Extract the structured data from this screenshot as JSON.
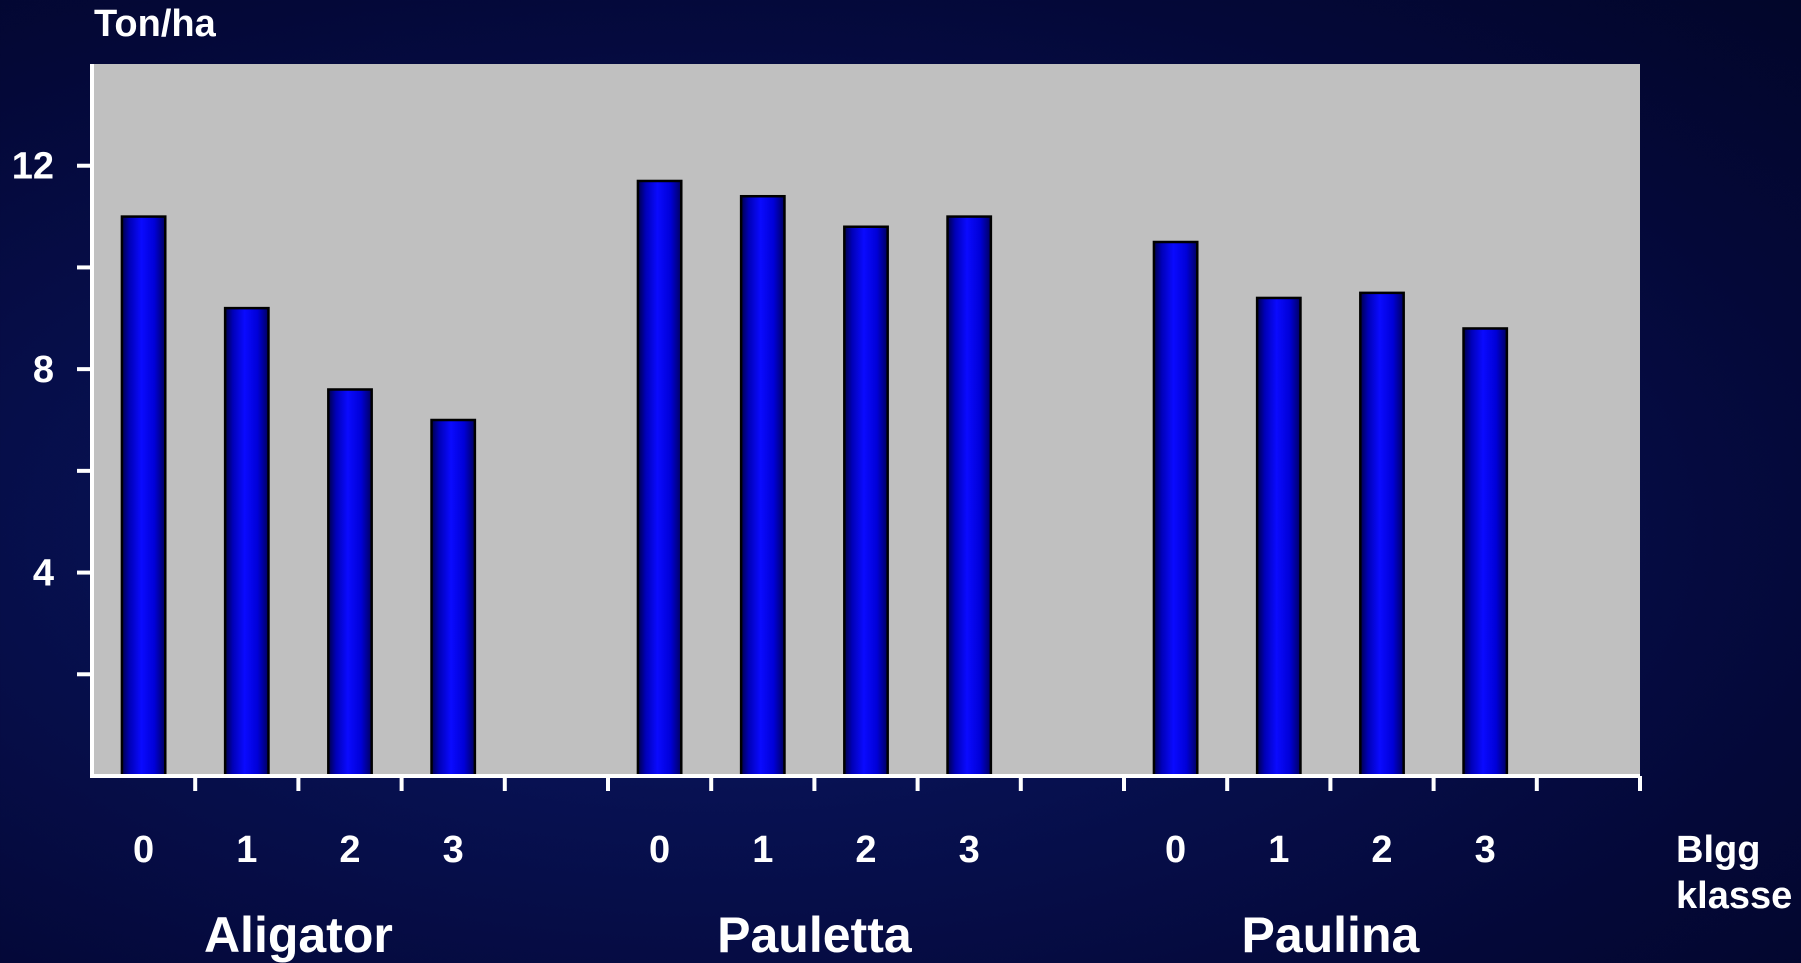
{
  "chart_data": {
    "type": "bar",
    "ylabel": "Ton/ha",
    "xlabel": [
      "Blgg",
      "klasse"
    ],
    "ylim": [
      0,
      14
    ],
    "y_major_ticks": [
      4,
      8,
      12
    ],
    "y_minor_ticks": [
      2,
      6,
      10
    ],
    "y_tick_labels": [
      "4",
      "8",
      "12"
    ],
    "grid": false,
    "plot_background": "#c0c0c0",
    "bar_color": "#0000ff",
    "axis_color": "#ffffff",
    "groups": [
      {
        "name": "Aligator",
        "categories": [
          "0",
          "1",
          "2",
          "3"
        ],
        "values": [
          11.0,
          9.2,
          7.6,
          7.0
        ]
      },
      {
        "name": "Pauletta",
        "categories": [
          "0",
          "1",
          "2",
          "3"
        ],
        "values": [
          11.7,
          11.4,
          10.8,
          11.0
        ]
      },
      {
        "name": "Paulina",
        "categories": [
          "0",
          "1",
          "2",
          "3"
        ],
        "values": [
          10.5,
          9.4,
          9.5,
          8.8
        ]
      }
    ]
  }
}
